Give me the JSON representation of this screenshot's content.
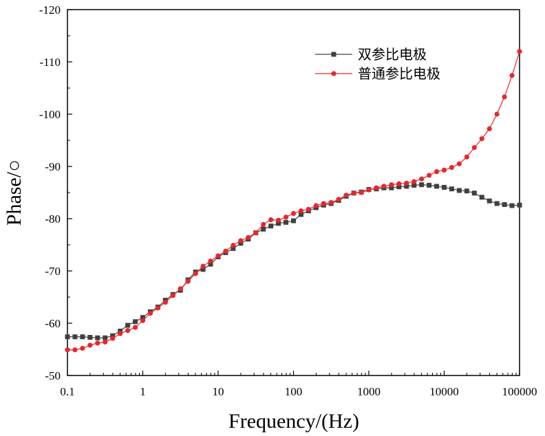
{
  "chart_data": {
    "type": "line",
    "title": "",
    "xlabel": "Frequency/(Hz)",
    "ylabel": "Phase/○",
    "xscale": "log",
    "xlim": [
      0.1,
      100000
    ],
    "ylim": [
      -50,
      -120
    ],
    "x_ticks": [
      0.1,
      1,
      10,
      100,
      1000,
      10000,
      100000
    ],
    "x_tick_labels": [
      "0.1",
      "1",
      "10",
      "100",
      "1000",
      "10000",
      "100000"
    ],
    "y_ticks": [
      -50,
      -60,
      -70,
      -80,
      -90,
      -100,
      -110,
      -120
    ],
    "y_tick_labels": [
      "-50",
      "-60",
      "-70",
      "-80",
      "-90",
      "-100",
      "-110",
      "-120"
    ],
    "grid": false,
    "legend_position": "top-right",
    "series": [
      {
        "name": "双参比电极",
        "color": "#404040",
        "marker": "square",
        "x": [
          0.1,
          0.1259,
          0.1585,
          0.1995,
          0.2512,
          0.3162,
          0.3981,
          0.5012,
          0.631,
          0.7943,
          1,
          1.259,
          1.585,
          1.995,
          2.512,
          3.162,
          3.981,
          5.012,
          6.31,
          7.943,
          10,
          12.59,
          15.85,
          19.95,
          25.12,
          31.62,
          39.81,
          50.12,
          63.1,
          79.43,
          100,
          125.9,
          158.5,
          199.5,
          251.2,
          316.2,
          398.1,
          501.2,
          631,
          794.3,
          1000,
          1259,
          1585,
          1995,
          2512,
          3162,
          3981,
          5012,
          6310,
          7943,
          10000,
          12589,
          15849,
          19953,
          25119,
          31623,
          39811,
          50119,
          63096,
          79433,
          100000
        ],
        "y": [
          -57.4,
          -57.4,
          -57.4,
          -57.3,
          -57.2,
          -57.2,
          -57.6,
          -58.5,
          -59.6,
          -60.3,
          -61.1,
          -62.2,
          -63.1,
          -64.4,
          -65.5,
          -66.3,
          -68.3,
          -69.8,
          -70.3,
          -71.3,
          -72.7,
          -73.5,
          -74.3,
          -75.3,
          -76.1,
          -77.3,
          -78.0,
          -78.6,
          -79.1,
          -79.3,
          -79.6,
          -80.8,
          -81.5,
          -82.1,
          -82.6,
          -82.9,
          -83.5,
          -84.3,
          -84.9,
          -85.1,
          -85.6,
          -85.7,
          -85.9,
          -85.9,
          -86.1,
          -86.2,
          -86.4,
          -86.5,
          -86.4,
          -86.2,
          -86.0,
          -85.7,
          -85.4,
          -85.3,
          -84.9,
          -84.1,
          -83.4,
          -82.9,
          -82.7,
          -82.5,
          -82.6
        ]
      },
      {
        "name": "普通参比电极",
        "color": "#e8262d",
        "marker": "circle",
        "x": [
          0.1,
          0.1259,
          0.1585,
          0.1995,
          0.2512,
          0.3162,
          0.3981,
          0.5012,
          0.631,
          0.7943,
          1,
          1.259,
          1.585,
          1.995,
          2.512,
          3.162,
          3.981,
          5.012,
          6.31,
          7.943,
          10,
          12.59,
          15.85,
          19.95,
          25.12,
          31.62,
          39.81,
          50.12,
          63.1,
          79.43,
          100,
          125.9,
          158.5,
          199.5,
          251.2,
          316.2,
          398.1,
          501.2,
          631,
          794.3,
          1000,
          1259,
          1585,
          1995,
          2512,
          3162,
          3981,
          5012,
          6310,
          7943,
          10000,
          12589,
          15849,
          19953,
          25119,
          31623,
          39811,
          50119,
          63096,
          79433,
          100000
        ],
        "y": [
          -54.9,
          -54.9,
          -55.2,
          -55.8,
          -56.2,
          -56.4,
          -57.1,
          -58.0,
          -58.6,
          -59.2,
          -60.5,
          -61.9,
          -62.9,
          -64.0,
          -65.3,
          -66.6,
          -68.0,
          -69.5,
          -70.9,
          -71.9,
          -72.9,
          -73.8,
          -74.9,
          -75.8,
          -76.4,
          -77.3,
          -78.9,
          -79.8,
          -79.7,
          -80.3,
          -81.0,
          -81.5,
          -81.8,
          -82.5,
          -82.9,
          -83.1,
          -83.7,
          -84.5,
          -84.9,
          -85.0,
          -85.5,
          -85.9,
          -86.2,
          -86.5,
          -86.7,
          -86.8,
          -87.1,
          -87.6,
          -88.3,
          -89.0,
          -89.3,
          -89.8,
          -90.5,
          -91.8,
          -93.6,
          -95.3,
          -97.2,
          -100.0,
          -103.3,
          -107.4,
          -112.0
        ]
      }
    ]
  }
}
